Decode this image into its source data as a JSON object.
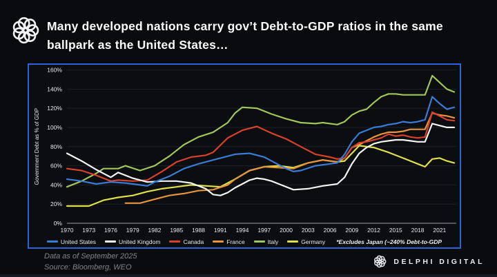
{
  "header": {
    "title_line1": "Many developed nations carry gov’t Debt-to-GDP ratios in the same",
    "title_line2": "ballpark as the United States…"
  },
  "chart_data": {
    "type": "line",
    "ylabel": "Government Debt as % of GDP",
    "ylim": [
      0,
      160
    ],
    "y_tick_step": 20,
    "y_tick_suffix": "%",
    "x_range": [
      1970,
      2023
    ],
    "x_ticks": [
      1970,
      1973,
      1976,
      1979,
      1982,
      1985,
      1988,
      1991,
      1994,
      1997,
      2000,
      2003,
      2006,
      2009,
      2012,
      2015,
      2018,
      2021
    ],
    "grid": "horizontal",
    "legend_position": "bottom",
    "note": "*Excludes Japan (~240% Debt-to-GDP",
    "draw_order": [
      4,
      5,
      3,
      2,
      1,
      0
    ],
    "series": [
      {
        "name": "United States",
        "color": "#3a7bd8",
        "points": [
          [
            1970,
            46
          ],
          [
            1972,
            44
          ],
          [
            1974,
            41
          ],
          [
            1976,
            43
          ],
          [
            1978,
            42
          ],
          [
            1980,
            40
          ],
          [
            1981,
            39
          ],
          [
            1982,
            43
          ],
          [
            1984,
            49
          ],
          [
            1986,
            57
          ],
          [
            1988,
            62
          ],
          [
            1990,
            66
          ],
          [
            1992,
            70
          ],
          [
            1993,
            72
          ],
          [
            1995,
            73
          ],
          [
            1997,
            69
          ],
          [
            1999,
            61
          ],
          [
            2000,
            57
          ],
          [
            2001,
            54
          ],
          [
            2002,
            55
          ],
          [
            2004,
            60
          ],
          [
            2006,
            62
          ],
          [
            2007,
            63
          ],
          [
            2008,
            72
          ],
          [
            2009,
            85
          ],
          [
            2010,
            94
          ],
          [
            2011,
            97
          ],
          [
            2012,
            100
          ],
          [
            2013,
            101
          ],
          [
            2014,
            103
          ],
          [
            2015,
            104
          ],
          [
            2016,
            106
          ],
          [
            2017,
            105
          ],
          [
            2018,
            106
          ],
          [
            2019,
            108
          ],
          [
            2020,
            132
          ],
          [
            2021,
            125
          ],
          [
            2022,
            119
          ],
          [
            2023,
            121
          ]
        ]
      },
      {
        "name": "United Kingdom",
        "color": "#f4f5f6",
        "points": [
          [
            1970,
            73
          ],
          [
            1972,
            65
          ],
          [
            1974,
            56
          ],
          [
            1976,
            48
          ],
          [
            1977,
            53
          ],
          [
            1979,
            47
          ],
          [
            1981,
            43
          ],
          [
            1983,
            44
          ],
          [
            1985,
            44
          ],
          [
            1987,
            42
          ],
          [
            1989,
            36
          ],
          [
            1990,
            30
          ],
          [
            1991,
            29
          ],
          [
            1992,
            32
          ],
          [
            1993,
            37
          ],
          [
            1994,
            41
          ],
          [
            1995,
            45
          ],
          [
            1996,
            47
          ],
          [
            1997,
            46
          ],
          [
            1998,
            44
          ],
          [
            1999,
            41
          ],
          [
            2001,
            35
          ],
          [
            2003,
            36
          ],
          [
            2005,
            39
          ],
          [
            2007,
            41
          ],
          [
            2008,
            48
          ],
          [
            2009,
            62
          ],
          [
            2010,
            73
          ],
          [
            2011,
            79
          ],
          [
            2012,
            83
          ],
          [
            2013,
            85
          ],
          [
            2014,
            86
          ],
          [
            2015,
            87
          ],
          [
            2016,
            87
          ],
          [
            2017,
            86
          ],
          [
            2018,
            85
          ],
          [
            2019,
            85
          ],
          [
            2020,
            104
          ],
          [
            2021,
            102
          ],
          [
            2022,
            100
          ],
          [
            2023,
            100
          ]
        ]
      },
      {
        "name": "Canada",
        "color": "#d9412a",
        "points": [
          [
            1970,
            57
          ],
          [
            1972,
            55
          ],
          [
            1974,
            50
          ],
          [
            1976,
            44
          ],
          [
            1977,
            45
          ],
          [
            1979,
            44
          ],
          [
            1981,
            45
          ],
          [
            1983,
            54
          ],
          [
            1985,
            64
          ],
          [
            1987,
            69
          ],
          [
            1989,
            71
          ],
          [
            1990,
            74
          ],
          [
            1992,
            89
          ],
          [
            1994,
            97
          ],
          [
            1996,
            101
          ],
          [
            1998,
            94
          ],
          [
            2000,
            88
          ],
          [
            2002,
            80
          ],
          [
            2004,
            72
          ],
          [
            2006,
            69
          ],
          [
            2007,
            67
          ],
          [
            2008,
            68
          ],
          [
            2009,
            79
          ],
          [
            2010,
            84
          ],
          [
            2011,
            85
          ],
          [
            2012,
            87
          ],
          [
            2013,
            89
          ],
          [
            2014,
            93
          ],
          [
            2015,
            91
          ],
          [
            2016,
            92
          ],
          [
            2017,
            90
          ],
          [
            2018,
            89
          ],
          [
            2019,
            90
          ],
          [
            2020,
            116
          ],
          [
            2021,
            112
          ],
          [
            2022,
            108
          ],
          [
            2023,
            107
          ]
        ]
      },
      {
        "name": "France",
        "color": "#e6953e",
        "points": [
          [
            1978,
            21
          ],
          [
            1980,
            21
          ],
          [
            1982,
            25
          ],
          [
            1984,
            29
          ],
          [
            1986,
            31
          ],
          [
            1988,
            34
          ],
          [
            1990,
            35
          ],
          [
            1992,
            40
          ],
          [
            1993,
            46
          ],
          [
            1995,
            55
          ],
          [
            1997,
            59
          ],
          [
            1999,
            58
          ],
          [
            2001,
            57
          ],
          [
            2003,
            63
          ],
          [
            2005,
            66
          ],
          [
            2007,
            64
          ],
          [
            2008,
            68
          ],
          [
            2009,
            79
          ],
          [
            2010,
            82
          ],
          [
            2011,
            86
          ],
          [
            2012,
            90
          ],
          [
            2013,
            93
          ],
          [
            2014,
            95
          ],
          [
            2015,
            95
          ],
          [
            2016,
            96
          ],
          [
            2017,
            98
          ],
          [
            2018,
            98
          ],
          [
            2019,
            98
          ],
          [
            2020,
            115
          ],
          [
            2021,
            113
          ],
          [
            2022,
            112
          ],
          [
            2023,
            110
          ]
        ]
      },
      {
        "name": "Italy",
        "color": "#a3c65a",
        "points": [
          [
            1970,
            38
          ],
          [
            1972,
            44
          ],
          [
            1974,
            52
          ],
          [
            1975,
            57
          ],
          [
            1977,
            57
          ],
          [
            1978,
            60
          ],
          [
            1980,
            55
          ],
          [
            1982,
            60
          ],
          [
            1984,
            70
          ],
          [
            1986,
            82
          ],
          [
            1988,
            90
          ],
          [
            1990,
            95
          ],
          [
            1992,
            105
          ],
          [
            1993,
            115
          ],
          [
            1994,
            121
          ],
          [
            1996,
            120
          ],
          [
            1998,
            114
          ],
          [
            2000,
            109
          ],
          [
            2002,
            105
          ],
          [
            2004,
            104
          ],
          [
            2005,
            105
          ],
          [
            2007,
            103
          ],
          [
            2008,
            106
          ],
          [
            2009,
            113
          ],
          [
            2010,
            117
          ],
          [
            2011,
            119
          ],
          [
            2012,
            126
          ],
          [
            2013,
            132
          ],
          [
            2014,
            135
          ],
          [
            2015,
            135
          ],
          [
            2016,
            134
          ],
          [
            2017,
            134
          ],
          [
            2018,
            134
          ],
          [
            2019,
            134
          ],
          [
            2020,
            154
          ],
          [
            2021,
            147
          ],
          [
            2022,
            140
          ],
          [
            2023,
            137
          ]
        ]
      },
      {
        "name": "Germany",
        "color": "#dfe14a",
        "points": [
          [
            1970,
            18
          ],
          [
            1973,
            18
          ],
          [
            1975,
            24
          ],
          [
            1977,
            27
          ],
          [
            1979,
            29
          ],
          [
            1981,
            33
          ],
          [
            1983,
            36
          ],
          [
            1985,
            38
          ],
          [
            1987,
            40
          ],
          [
            1989,
            39
          ],
          [
            1991,
            38
          ],
          [
            1993,
            46
          ],
          [
            1995,
            55
          ],
          [
            1997,
            59
          ],
          [
            1999,
            60
          ],
          [
            2001,
            58
          ],
          [
            2003,
            63
          ],
          [
            2005,
            66
          ],
          [
            2007,
            64
          ],
          [
            2008,
            65
          ],
          [
            2009,
            73
          ],
          [
            2010,
            81
          ],
          [
            2012,
            79
          ],
          [
            2014,
            74
          ],
          [
            2016,
            68
          ],
          [
            2018,
            62
          ],
          [
            2019,
            59
          ],
          [
            2020,
            67
          ],
          [
            2021,
            68
          ],
          [
            2022,
            65
          ],
          [
            2023,
            63
          ]
        ]
      }
    ]
  },
  "footer": {
    "data_as_of": "Data as of September 2025",
    "source": "Source: Bloomberg, WEO",
    "brand": "DELPHI DIGITAL"
  }
}
